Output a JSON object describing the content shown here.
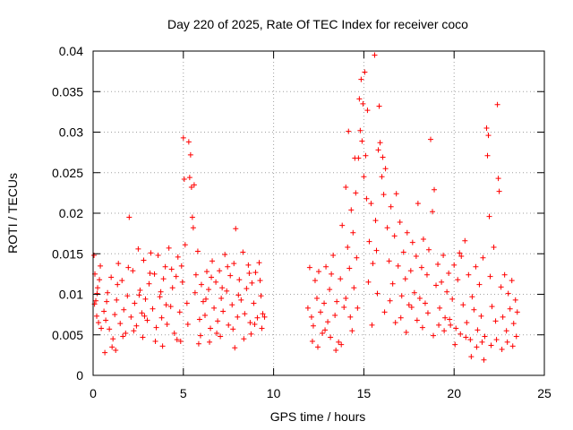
{
  "chart_data": {
    "type": "scatter",
    "title": "Day 220 of 2025, Rate Of TEC Index for receiver coco",
    "xlabel": "GPS time / hours",
    "ylabel": "ROTI / TECUs",
    "xlim": [
      0,
      25
    ],
    "ylim": [
      0,
      0.04
    ],
    "x_ticks": [
      0,
      5,
      10,
      15,
      20,
      25
    ],
    "x_tick_labels": [
      "0",
      "5",
      "10",
      "15",
      "20",
      "25"
    ],
    "y_ticks": [
      0,
      0.005,
      0.01,
      0.015,
      0.02,
      0.025,
      0.03,
      0.035,
      0.04
    ],
    "y_tick_labels": [
      "0",
      "0.005",
      "0.01",
      "0.015",
      "0.02",
      "0.025",
      "0.03",
      "0.035",
      "0.04"
    ],
    "grid": true,
    "marker": "plus",
    "color": "#ff0000",
    "points": [
      [
        0.05,
        0.0148
      ],
      [
        0.1,
        0.0125
      ],
      [
        0.15,
        0.0092
      ],
      [
        0.2,
        0.0073
      ],
      [
        0.25,
        0.0108
      ],
      [
        0.3,
        0.0065
      ],
      [
        0.35,
        0.0118
      ],
      [
        0.4,
        0.0135
      ],
      [
        0.08,
        0.0088
      ],
      [
        0.22,
        0.0101
      ],
      [
        0.6,
        0.0079
      ],
      [
        0.7,
        0.0068
      ],
      [
        0.8,
        0.0102
      ],
      [
        0.9,
        0.0057
      ],
      [
        1.0,
        0.0121
      ],
      [
        1.1,
        0.0045
      ],
      [
        1.2,
        0.0075
      ],
      [
        1.3,
        0.0093
      ],
      [
        1.4,
        0.0138
      ],
      [
        1.5,
        0.0064
      ],
      [
        1.6,
        0.0117
      ],
      [
        1.7,
        0.0081
      ],
      [
        1.8,
        0.0052
      ],
      [
        1.9,
        0.0098
      ],
      [
        2.0,
        0.0195
      ],
      [
        2.1,
        0.0072
      ],
      [
        2.2,
        0.0129
      ],
      [
        2.3,
        0.0089
      ],
      [
        2.4,
        0.0061
      ],
      [
        2.5,
        0.0156
      ],
      [
        2.6,
        0.0105
      ],
      [
        2.7,
        0.0077
      ],
      [
        2.8,
        0.0142
      ],
      [
        2.9,
        0.0094
      ],
      [
        3.0,
        0.0068
      ],
      [
        3.1,
        0.0113
      ],
      [
        3.2,
        0.0151
      ],
      [
        3.3,
        0.0082
      ],
      [
        3.4,
        0.0125
      ],
      [
        3.5,
        0.0059
      ],
      [
        3.6,
        0.0148
      ],
      [
        3.7,
        0.0097
      ],
      [
        3.8,
        0.0071
      ],
      [
        3.9,
        0.0119
      ],
      [
        4.0,
        0.0134
      ],
      [
        4.1,
        0.0063
      ],
      [
        4.2,
        0.0157
      ],
      [
        4.3,
        0.0085
      ],
      [
        4.4,
        0.0108
      ],
      [
        4.5,
        0.0052
      ],
      [
        4.6,
        0.0122
      ],
      [
        4.7,
        0.0146
      ],
      [
        4.8,
        0.0078
      ],
      [
        4.9,
        0.0135
      ],
      [
        5.0,
        0.0293
      ],
      [
        5.05,
        0.0242
      ],
      [
        5.1,
        0.0161
      ],
      [
        5.2,
        0.0089
      ],
      [
        5.3,
        0.0288
      ],
      [
        5.35,
        0.0244
      ],
      [
        5.4,
        0.0272
      ],
      [
        5.45,
        0.0232
      ],
      [
        5.5,
        0.0195
      ],
      [
        5.55,
        0.0182
      ],
      [
        5.6,
        0.0235
      ],
      [
        5.7,
        0.0124
      ],
      [
        5.8,
        0.0153
      ],
      [
        5.9,
        0.0069
      ],
      [
        6.0,
        0.0112
      ],
      [
        6.1,
        0.0091
      ],
      [
        6.2,
        0.0074
      ],
      [
        6.3,
        0.0128
      ],
      [
        6.4,
        0.0106
      ],
      [
        6.5,
        0.0058
      ],
      [
        6.6,
        0.0141
      ],
      [
        6.7,
        0.0083
      ],
      [
        6.8,
        0.0115
      ],
      [
        6.9,
        0.0067
      ],
      [
        7.0,
        0.0129
      ],
      [
        7.1,
        0.0095
      ],
      [
        7.2,
        0.0079
      ],
      [
        7.3,
        0.0149
      ],
      [
        7.4,
        0.0104
      ],
      [
        7.5,
        0.0062
      ],
      [
        7.6,
        0.0123
      ],
      [
        7.7,
        0.0087
      ],
      [
        7.8,
        0.0138
      ],
      [
        7.9,
        0.0181
      ],
      [
        8.0,
        0.0072
      ],
      [
        8.1,
        0.0118
      ],
      [
        8.2,
        0.0093
      ],
      [
        8.3,
        0.0152
      ],
      [
        8.4,
        0.0076
      ],
      [
        8.5,
        0.0107
      ],
      [
        8.6,
        0.0136
      ],
      [
        8.7,
        0.0065
      ],
      [
        8.8,
        0.0114
      ],
      [
        8.9,
        0.0089
      ],
      [
        9.0,
        0.0127
      ],
      [
        9.1,
        0.0071
      ],
      [
        9.2,
        0.0139
      ],
      [
        9.3,
        0.0098
      ],
      [
        9.4,
        0.0076
      ],
      [
        9.5,
        0.0072
      ],
      [
        0.45,
        0.0058
      ],
      [
        0.75,
        0.0091
      ],
      [
        1.05,
        0.0035
      ],
      [
        1.35,
        0.0112
      ],
      [
        1.65,
        0.0048
      ],
      [
        1.95,
        0.0133
      ],
      [
        2.25,
        0.0055
      ],
      [
        2.55,
        0.0099
      ],
      [
        2.85,
        0.0073
      ],
      [
        3.15,
        0.0126
      ],
      [
        3.45,
        0.0042
      ],
      [
        3.75,
        0.0103
      ],
      [
        4.05,
        0.0087
      ],
      [
        4.35,
        0.0131
      ],
      [
        4.65,
        0.0044
      ],
      [
        4.95,
        0.0115
      ],
      [
        5.25,
        0.0063
      ],
      [
        5.65,
        0.0102
      ],
      [
        5.95,
        0.0049
      ],
      [
        6.25,
        0.0094
      ],
      [
        6.55,
        0.0121
      ],
      [
        6.85,
        0.0052
      ],
      [
        7.15,
        0.0108
      ],
      [
        7.45,
        0.0134
      ],
      [
        7.75,
        0.0057
      ],
      [
        8.05,
        0.0099
      ],
      [
        8.35,
        0.0045
      ],
      [
        8.65,
        0.0126
      ],
      [
        8.95,
        0.0063
      ],
      [
        9.25,
        0.0117
      ],
      [
        0.65,
        0.0028
      ],
      [
        1.25,
        0.0031
      ],
      [
        2.75,
        0.0047
      ],
      [
        3.85,
        0.0036
      ],
      [
        4.85,
        0.0042
      ],
      [
        5.85,
        0.0039
      ],
      [
        6.45,
        0.0041
      ],
      [
        7.05,
        0.0048
      ],
      [
        7.85,
        0.0034
      ],
      [
        8.75,
        0.0051
      ],
      [
        9.35,
        0.0058
      ],
      [
        11.9,
        0.0083
      ],
      [
        12.0,
        0.0133
      ],
      [
        12.1,
        0.0072
      ],
      [
        12.2,
        0.0061
      ],
      [
        12.3,
        0.0117
      ],
      [
        12.4,
        0.0095
      ],
      [
        12.5,
        0.0128
      ],
      [
        12.6,
        0.0078
      ],
      [
        12.7,
        0.0052
      ],
      [
        12.8,
        0.0089
      ],
      [
        12.9,
        0.0134
      ],
      [
        13.0,
        0.0066
      ],
      [
        13.1,
        0.0106
      ],
      [
        13.2,
        0.0125
      ],
      [
        13.3,
        0.0148
      ],
      [
        13.4,
        0.0074
      ],
      [
        13.5,
        0.0091
      ],
      [
        13.6,
        0.0041
      ],
      [
        13.7,
        0.0119
      ],
      [
        13.8,
        0.0185
      ],
      [
        13.9,
        0.0084
      ],
      [
        14.0,
        0.0232
      ],
      [
        14.1,
        0.0158
      ],
      [
        14.15,
        0.0301
      ],
      [
        14.2,
        0.0132
      ],
      [
        14.3,
        0.0204
      ],
      [
        14.4,
        0.0176
      ],
      [
        14.5,
        0.0268
      ],
      [
        14.55,
        0.0225
      ],
      [
        14.6,
        0.0145
      ],
      [
        14.7,
        0.0268
      ],
      [
        14.75,
        0.0341
      ],
      [
        14.8,
        0.0302
      ],
      [
        14.85,
        0.0365
      ],
      [
        14.9,
        0.0289
      ],
      [
        14.95,
        0.0335
      ],
      [
        15.0,
        0.0245
      ],
      [
        15.05,
        0.0374
      ],
      [
        15.1,
        0.0271
      ],
      [
        15.15,
        0.0218
      ],
      [
        15.2,
        0.0327
      ],
      [
        15.3,
        0.0165
      ],
      [
        15.4,
        0.0212
      ],
      [
        15.5,
        0.0138
      ],
      [
        15.6,
        0.0395
      ],
      [
        15.65,
        0.0191
      ],
      [
        15.7,
        0.0154
      ],
      [
        15.8,
        0.0278
      ],
      [
        15.85,
        0.0332
      ],
      [
        15.9,
        0.0287
      ],
      [
        16.0,
        0.0245
      ],
      [
        16.05,
        0.0269
      ],
      [
        16.1,
        0.0223
      ],
      [
        16.2,
        0.0255
      ],
      [
        16.3,
        0.0182
      ],
      [
        16.4,
        0.0141
      ],
      [
        16.5,
        0.0208
      ],
      [
        16.6,
        0.0113
      ],
      [
        16.7,
        0.0172
      ],
      [
        16.8,
        0.0224
      ],
      [
        16.9,
        0.0135
      ],
      [
        17.0,
        0.0189
      ],
      [
        17.1,
        0.0098
      ],
      [
        17.2,
        0.0152
      ],
      [
        17.3,
        0.0119
      ],
      [
        17.4,
        0.0176
      ],
      [
        17.5,
        0.0087
      ],
      [
        17.6,
        0.0129
      ],
      [
        17.7,
        0.0164
      ],
      [
        17.8,
        0.0102
      ],
      [
        17.9,
        0.0147
      ],
      [
        18.0,
        0.0212
      ],
      [
        18.1,
        0.0095
      ],
      [
        18.2,
        0.0133
      ],
      [
        18.3,
        0.0168
      ],
      [
        18.4,
        0.0089
      ],
      [
        18.5,
        0.0124
      ],
      [
        18.6,
        0.0155
      ],
      [
        18.7,
        0.0291
      ],
      [
        18.8,
        0.0202
      ],
      [
        18.9,
        0.0229
      ],
      [
        19.0,
        0.0111
      ],
      [
        19.1,
        0.0137
      ],
      [
        19.2,
        0.0083
      ],
      [
        19.3,
        0.0115
      ],
      [
        19.4,
        0.0148
      ],
      [
        19.5,
        0.0071
      ],
      [
        19.6,
        0.0103
      ],
      [
        19.7,
        0.0126
      ],
      [
        19.8,
        0.0062
      ],
      [
        19.9,
        0.0094
      ],
      [
        20.0,
        0.0136
      ],
      [
        20.1,
        0.0058
      ],
      [
        20.2,
        0.0118
      ],
      [
        20.3,
        0.0151
      ],
      [
        20.4,
        0.0147
      ],
      [
        20.5,
        0.0087
      ],
      [
        20.6,
        0.0166
      ],
      [
        20.7,
        0.0065
      ],
      [
        20.8,
        0.0124
      ],
      [
        20.9,
        0.0044
      ],
      [
        21.0,
        0.0097
      ],
      [
        21.1,
        0.0081
      ],
      [
        21.2,
        0.0134
      ],
      [
        21.3,
        0.0056
      ],
      [
        21.4,
        0.0112
      ],
      [
        21.5,
        0.0073
      ],
      [
        21.6,
        0.0145
      ],
      [
        21.7,
        0.0048
      ],
      [
        21.8,
        0.0305
      ],
      [
        21.85,
        0.0271
      ],
      [
        21.9,
        0.0296
      ],
      [
        21.95,
        0.0196
      ],
      [
        22.0,
        0.0122
      ],
      [
        22.1,
        0.0085
      ],
      [
        22.2,
        0.0158
      ],
      [
        22.3,
        0.0067
      ],
      [
        22.4,
        0.0334
      ],
      [
        22.45,
        0.0243
      ],
      [
        22.5,
        0.0227
      ],
      [
        22.6,
        0.0109
      ],
      [
        22.7,
        0.0072
      ],
      [
        22.8,
        0.0124
      ],
      [
        22.9,
        0.0055
      ],
      [
        23.0,
        0.0101
      ],
      [
        23.1,
        0.0082
      ],
      [
        23.2,
        0.0117
      ],
      [
        23.3,
        0.0064
      ],
      [
        23.4,
        0.0093
      ],
      [
        23.5,
        0.0078
      ],
      [
        14.0,
        0.0095
      ],
      [
        14.25,
        0.0072
      ],
      [
        14.45,
        0.0108
      ],
      [
        14.65,
        0.0083
      ],
      [
        15.25,
        0.0115
      ],
      [
        15.45,
        0.0062
      ],
      [
        15.75,
        0.0101
      ],
      [
        16.15,
        0.0078
      ],
      [
        16.45,
        0.0092
      ],
      [
        16.75,
        0.0065
      ],
      [
        17.05,
        0.0071
      ],
      [
        17.35,
        0.0053
      ],
      [
        17.65,
        0.0084
      ],
      [
        17.95,
        0.0068
      ],
      [
        18.25,
        0.0059
      ],
      [
        18.55,
        0.0077
      ],
      [
        18.85,
        0.0049
      ],
      [
        19.15,
        0.0062
      ],
      [
        19.45,
        0.0055
      ],
      [
        19.75,
        0.0069
      ],
      [
        20.05,
        0.0038
      ],
      [
        20.35,
        0.0051
      ],
      [
        20.65,
        0.0047
      ],
      [
        20.95,
        0.0023
      ],
      [
        21.25,
        0.0035
      ],
      [
        21.55,
        0.0041
      ],
      [
        21.65,
        0.0019
      ],
      [
        22.05,
        0.0037
      ],
      [
        22.35,
        0.0044
      ],
      [
        22.65,
        0.0032
      ],
      [
        22.95,
        0.0041
      ],
      [
        23.25,
        0.0036
      ],
      [
        23.45,
        0.0048
      ],
      [
        12.15,
        0.0042
      ],
      [
        12.45,
        0.0035
      ],
      [
        12.85,
        0.0056
      ],
      [
        13.15,
        0.0047
      ],
      [
        13.45,
        0.0031
      ],
      [
        13.75,
        0.0038
      ],
      [
        14.35,
        0.0055
      ]
    ]
  }
}
